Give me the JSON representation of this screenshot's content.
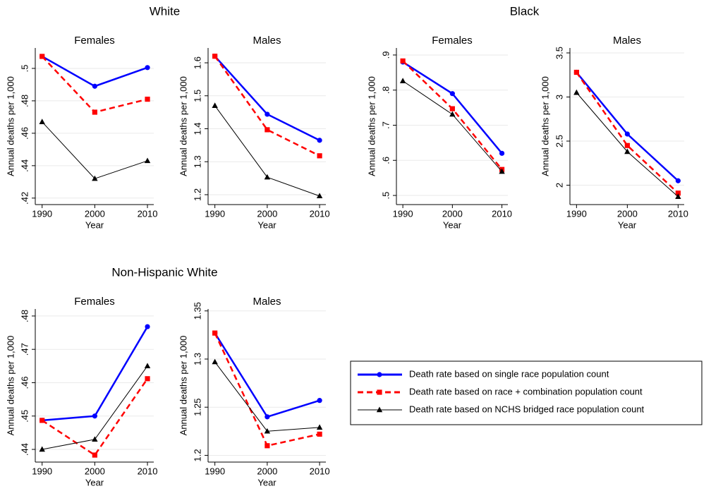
{
  "chart_data": [
    {
      "type": "line",
      "supertitle": "White",
      "title": "Females",
      "xlabel": "Year",
      "ylabel": "Annual deaths per 1,000",
      "x": [
        1990,
        2000,
        2010
      ],
      "xlim": [
        1988.7,
        2011.2
      ],
      "xticks": [
        1990,
        2000,
        2010
      ],
      "ylim": [
        0.416,
        0.5126
      ],
      "yticks": [
        {
          "value": 0.42,
          "label": ".42"
        },
        {
          "value": 0.44,
          "label": ".44"
        },
        {
          "value": 0.46,
          "label": ".46"
        },
        {
          "value": 0.48,
          "label": ".48"
        },
        {
          "value": 0.5,
          "label": ".5"
        }
      ],
      "grid": true,
      "series": [
        {
          "name": "Death rate based on single race population count",
          "color": "#0000ff",
          "marker": "circle",
          "dashed": false,
          "values": [
            0.5074,
            0.489,
            0.5005
          ]
        },
        {
          "name": "Death rate based on race + combination population count",
          "color": "#ff0000",
          "marker": "square",
          "dashed": true,
          "values": [
            0.5074,
            0.473,
            0.481
          ]
        },
        {
          "name": "Death rate based on NCHS bridged race population count",
          "color": "#000000",
          "marker": "triangle",
          "dashed": false,
          "values": [
            0.467,
            0.432,
            0.443
          ]
        }
      ]
    },
    {
      "type": "line",
      "title": "Males",
      "xlabel": "Year",
      "ylabel": "Annual deaths per 1,000",
      "x": [
        1990,
        2000,
        2010
      ],
      "xlim": [
        1988.7,
        2011.2
      ],
      "xticks": [
        1990,
        2000,
        2010
      ],
      "ylim": [
        1.17,
        1.645
      ],
      "yticks": [
        1.2,
        1.3,
        1.4,
        1.5,
        1.6
      ],
      "grid": true,
      "series": [
        {
          "name": "Death rate based on single race population count",
          "color": "#0000ff",
          "marker": "circle",
          "dashed": false,
          "values": [
            1.62,
            1.444,
            1.365
          ]
        },
        {
          "name": "Death rate based on race + combination population count",
          "color": "#ff0000",
          "marker": "square",
          "dashed": true,
          "values": [
            1.62,
            1.397,
            1.318
          ]
        },
        {
          "name": "Death rate based on NCHS bridged race population count",
          "color": "#000000",
          "marker": "triangle",
          "dashed": false,
          "values": [
            1.47,
            1.253,
            1.196
          ]
        }
      ]
    },
    {
      "type": "line",
      "supertitle": "Black",
      "title": "Females",
      "xlabel": "Year",
      "ylabel": "Annual deaths per 1,000",
      "x": [
        1990,
        2000,
        2010
      ],
      "xlim": [
        1988.7,
        2011.2
      ],
      "xticks": [
        1990,
        2000,
        2010
      ],
      "ylim": [
        0.474,
        0.92
      ],
      "yticks": [
        {
          "value": 0.5,
          "label": ".5"
        },
        {
          "value": 0.6,
          "label": ".6"
        },
        {
          "value": 0.7,
          "label": ".7"
        },
        {
          "value": 0.8,
          "label": ".8"
        },
        {
          "value": 0.9,
          "label": ".9"
        }
      ],
      "grid": true,
      "series": [
        {
          "name": "Death rate based on single race population count",
          "color": "#0000ff",
          "marker": "circle",
          "dashed": false,
          "values": [
            0.88,
            0.79,
            0.62
          ]
        },
        {
          "name": "Death rate based on race + combination population count",
          "color": "#ff0000",
          "marker": "square",
          "dashed": true,
          "values": [
            0.883,
            0.747,
            0.574
          ]
        },
        {
          "name": "Death rate based on NCHS bridged race population count",
          "color": "#000000",
          "marker": "triangle",
          "dashed": false,
          "values": [
            0.826,
            0.731,
            0.568
          ]
        }
      ]
    },
    {
      "type": "line",
      "title": "Males",
      "xlabel": "Year",
      "ylabel": "Annual deaths per 1,000",
      "x": [
        1990,
        2000,
        2010
      ],
      "xlim": [
        1988.7,
        2011.2
      ],
      "xticks": [
        1990,
        2000,
        2010
      ],
      "ylim": [
        1.78,
        3.556
      ],
      "yticks": [
        2,
        2.5,
        3,
        3.5
      ],
      "grid": true,
      "series": [
        {
          "name": "Death rate based on single race population count",
          "color": "#0000ff",
          "marker": "circle",
          "dashed": false,
          "values": [
            3.28,
            2.58,
            2.05
          ]
        },
        {
          "name": "Death rate based on race + combination population count",
          "color": "#ff0000",
          "marker": "square",
          "dashed": true,
          "values": [
            3.28,
            2.45,
            1.91
          ]
        },
        {
          "name": "Death rate based on NCHS bridged race population count",
          "color": "#000000",
          "marker": "triangle",
          "dashed": false,
          "values": [
            3.05,
            2.38,
            1.87
          ]
        }
      ]
    },
    {
      "type": "line",
      "supertitle": "Non-Hispanic White",
      "title": "Females",
      "xlabel": "Year",
      "ylabel": "Annual deaths per 1,000",
      "x": [
        1990,
        2000,
        2010
      ],
      "xlim": [
        1988.7,
        2011.2
      ],
      "xticks": [
        1990,
        2000,
        2010
      ],
      "ylim": [
        0.4362,
        0.4821
      ],
      "yticks": [
        {
          "value": 0.44,
          "label": ".44"
        },
        {
          "value": 0.45,
          "label": ".45"
        },
        {
          "value": 0.46,
          "label": ".46"
        },
        {
          "value": 0.47,
          "label": ".47"
        },
        {
          "value": 0.48,
          "label": ".48"
        }
      ],
      "grid": true,
      "series": [
        {
          "name": "Death rate based on single race population count",
          "color": "#0000ff",
          "marker": "circle",
          "dashed": false,
          "values": [
            0.4487,
            0.45,
            0.4768
          ]
        },
        {
          "name": "Death rate based on race + combination population count",
          "color": "#ff0000",
          "marker": "square",
          "dashed": true,
          "values": [
            0.4487,
            0.4383,
            0.4612
          ]
        },
        {
          "name": "Death rate based on NCHS bridged race population count",
          "color": "#000000",
          "marker": "triangle",
          "dashed": false,
          "values": [
            0.44,
            0.443,
            0.465
          ]
        }
      ]
    },
    {
      "type": "line",
      "title": "Males",
      "xlabel": "Year",
      "ylabel": "Annual deaths per 1,000",
      "x": [
        1990,
        2000,
        2010
      ],
      "xlim": [
        1988.7,
        2011.2
      ],
      "xticks": [
        1990,
        2000,
        2010
      ],
      "ylim": [
        1.193,
        1.352
      ],
      "yticks": [
        1.2,
        1.25,
        1.3,
        1.35
      ],
      "grid": true,
      "series": [
        {
          "name": "Death rate based on single race population count",
          "color": "#0000ff",
          "marker": "circle",
          "dashed": false,
          "values": [
            1.327,
            1.24,
            1.257
          ]
        },
        {
          "name": "Death rate based on race + combination population count",
          "color": "#ff0000",
          "marker": "square",
          "dashed": true,
          "values": [
            1.327,
            1.21,
            1.222
          ]
        },
        {
          "name": "Death rate based on NCHS bridged race population count",
          "color": "#000000",
          "marker": "triangle",
          "dashed": false,
          "values": [
            1.297,
            1.225,
            1.229
          ]
        }
      ]
    }
  ]
}
